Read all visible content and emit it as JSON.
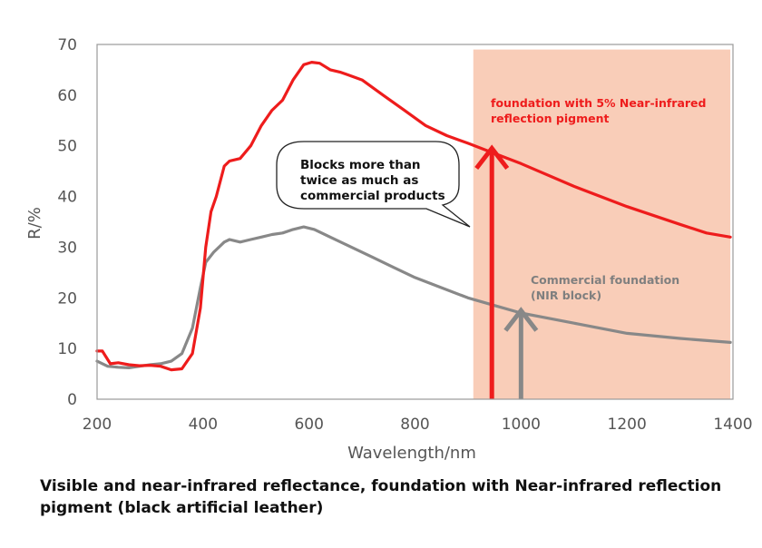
{
  "caption": "Visible and near-infrared reflectance, foundation with Near-infrared reflection pigment (black artificial leather)",
  "chart_data": {
    "type": "line",
    "xlabel": "Wavelength/nm",
    "ylabel": "R/%",
    "xlim": [
      200,
      1400
    ],
    "ylim": [
      0,
      70
    ],
    "xticks": [
      200,
      400,
      600,
      800,
      1000,
      1200,
      1400
    ],
    "yticks": [
      0,
      10,
      20,
      30,
      40,
      50,
      60,
      70
    ],
    "grid": false,
    "nir_band": {
      "from": 910,
      "to": 1395,
      "color": "#f9cdb8"
    },
    "series": [
      {
        "name": "foundation with 5% Near-infrared reflection pigment",
        "color": "#ee1c1c",
        "x": [
          200,
          210,
          225,
          240,
          260,
          280,
          300,
          320,
          340,
          360,
          380,
          395,
          405,
          415,
          425,
          440,
          450,
          470,
          490,
          510,
          530,
          550,
          570,
          590,
          605,
          620,
          640,
          660,
          700,
          740,
          780,
          820,
          860,
          900,
          950,
          1000,
          1100,
          1200,
          1300,
          1350,
          1395
        ],
        "y": [
          9.5,
          9.5,
          7.0,
          7.2,
          6.8,
          6.6,
          6.7,
          6.5,
          5.8,
          6.0,
          9.0,
          18.0,
          30.0,
          37.0,
          40.0,
          46.0,
          47.0,
          47.5,
          50.0,
          54.0,
          57.0,
          59.0,
          63.0,
          66.0,
          66.5,
          66.3,
          65.0,
          64.5,
          63.0,
          60.0,
          57.0,
          54.0,
          52.0,
          50.5,
          48.5,
          46.5,
          42.0,
          38.0,
          34.5,
          32.8,
          32.0
        ]
      },
      {
        "name": "Commercial foundation (NIR block)",
        "color": "#888888",
        "x": [
          200,
          220,
          240,
          260,
          280,
          300,
          320,
          340,
          360,
          380,
          395,
          405,
          420,
          440,
          450,
          470,
          490,
          510,
          530,
          550,
          570,
          590,
          610,
          640,
          680,
          720,
          760,
          800,
          850,
          900,
          950,
          1000,
          1050,
          1100,
          1150,
          1200,
          1300,
          1395
        ],
        "y": [
          7.5,
          6.5,
          6.3,
          6.2,
          6.5,
          6.8,
          7.0,
          7.5,
          9.0,
          14.0,
          22.0,
          27.0,
          29.0,
          31.0,
          31.5,
          31.0,
          31.5,
          32.0,
          32.5,
          32.8,
          33.5,
          34.0,
          33.5,
          32.0,
          30.0,
          28.0,
          26.0,
          24.0,
          22.0,
          20.0,
          18.5,
          17.0,
          16.0,
          15.0,
          14.0,
          13.0,
          12.0,
          11.2
        ]
      }
    ],
    "annotations": {
      "red_label_line1": "foundation with 5% Near-infrared",
      "red_label_line2": "reflection pigment",
      "gray_label_line1": "Commercial foundation",
      "gray_label_line2": "(NIR block)",
      "bubble_line1": "Blocks more than",
      "bubble_line2": "twice as much as",
      "bubble_line3": "commercial products"
    },
    "arrows": [
      {
        "x": 945,
        "y_from": 0,
        "y_to": 49.5,
        "color": "#ee1c1c"
      },
      {
        "x": 1000,
        "y_from": 0,
        "y_to": 17.5,
        "color": "#888888"
      }
    ]
  }
}
